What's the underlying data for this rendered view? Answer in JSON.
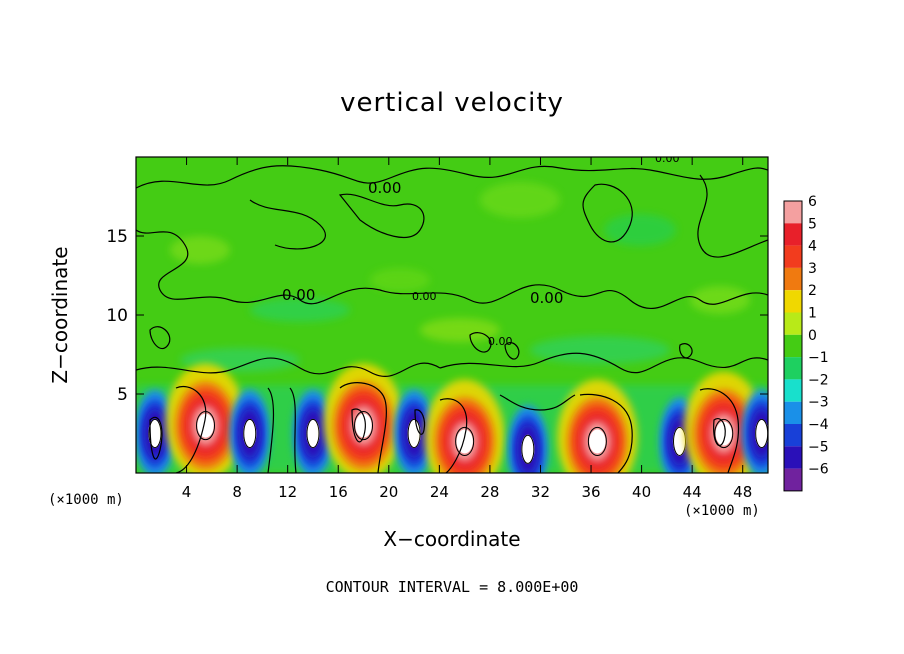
{
  "chart_data": {
    "type": "heatmap",
    "title": "vertical velocity",
    "xlabel": "X−coordinate",
    "ylabel": "Z−coordinate",
    "x_unit_left": "(×1000 m)",
    "x_unit_right": "(×1000 m)",
    "xlim": [
      0,
      50
    ],
    "ylim": [
      0,
      20
    ],
    "x_ticks": [
      4,
      8,
      12,
      16,
      20,
      24,
      28,
      32,
      36,
      40,
      44,
      48
    ],
    "y_ticks": [
      5,
      10,
      15
    ],
    "colorbar": {
      "ticks": [
        6,
        5,
        4,
        3,
        2,
        1,
        0,
        -1,
        -2,
        -3,
        -4,
        -5,
        -6
      ],
      "labels": [
        "6",
        "5",
        "4",
        "3",
        "2",
        "1",
        "0",
        "−1",
        "−2",
        "−3",
        "−4",
        "−5",
        "−6"
      ],
      "colors": [
        "#f4a0a0",
        "#e8202a",
        "#f23c1e",
        "#f07a10",
        "#f0d800",
        "#b8ea18",
        "#44cc14",
        "#1ed060",
        "#18e0cc",
        "#1a90e8",
        "#1840d8",
        "#2a10b8",
        "#70229e"
      ]
    },
    "contour_labels": [
      "0.00",
      "0.00",
      "0.00",
      "0.00",
      "0.00",
      "0.00"
    ],
    "contour_interval_text": "CONTOUR INTERVAL = 8.000E+00",
    "cells": [
      {
        "x": 1.5,
        "z": 2.5,
        "value": -5
      },
      {
        "x": 5.5,
        "z": 3.0,
        "value": 6
      },
      {
        "x": 9.0,
        "z": 2.5,
        "value": -5
      },
      {
        "x": 14.0,
        "z": 2.5,
        "value": -5
      },
      {
        "x": 18.0,
        "z": 3.0,
        "value": 6
      },
      {
        "x": 22.0,
        "z": 2.5,
        "value": -5
      },
      {
        "x": 26.0,
        "z": 2.0,
        "value": 6
      },
      {
        "x": 31.0,
        "z": 1.5,
        "value": -5
      },
      {
        "x": 36.5,
        "z": 2.0,
        "value": 6
      },
      {
        "x": 43.0,
        "z": 2.0,
        "value": -5
      },
      {
        "x": 46.5,
        "z": 2.5,
        "value": 6
      },
      {
        "x": 49.5,
        "z": 2.5,
        "value": -4
      }
    ]
  }
}
